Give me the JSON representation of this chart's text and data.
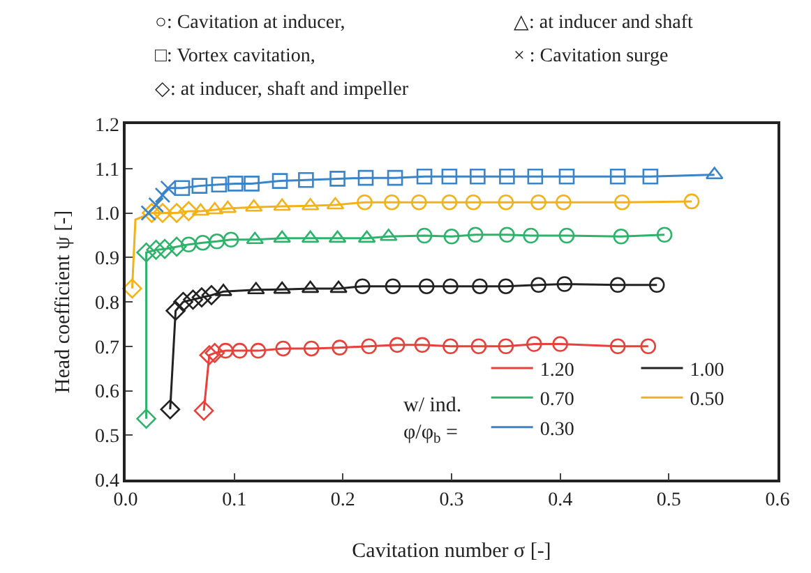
{
  "chart_data": {
    "type": "line",
    "xlabel": "Cavitation number σ [-]",
    "ylabel": "Head coefficient ψ [-]",
    "legend_title": "w/ ind.\nφ/φ$_{b}$ =",
    "legend": "bottom right",
    "grid": false,
    "xlim": [
      0,
      0.6
    ],
    "xticks": [
      {
        "value": 0,
        "label": "0.0"
      },
      0.1,
      0.2,
      0.3,
      0.4,
      0.5,
      0.6
    ],
    "ylim": [
      0.4,
      1.2
    ],
    "yticks": [
      0.4,
      0.5,
      0.6,
      0.7,
      0.8,
      0.9,
      {
        "value": 1,
        "label": "1.0"
      },
      1.1,
      1.2
    ],
    "annotations": [
      "○: Cavitation at inducer,",
      "△: at inducer and shaft",
      "□: Vortex cavitation,",
      "× : Cavitation surge",
      "◇: at inducer, shaft and impeller"
    ],
    "series": [
      {
        "name": "1.20",
        "type": "line",
        "marker": "none",
        "color": "#e8403a",
        "x": [
          0.072,
          0.077,
          0.082,
          0.092,
          0.105,
          0.122,
          0.145,
          0.171,
          0.197,
          0.224,
          0.25,
          0.273,
          0.299,
          0.325,
          0.35,
          0.376,
          0.4,
          0.453,
          0.481
        ],
        "values": [
          0.555,
          0.68,
          0.685,
          0.69,
          0.69,
          0.69,
          0.695,
          0.695,
          0.697,
          0.7,
          0.703,
          0.703,
          0.7,
          0.7,
          0.7,
          0.705,
          0.705,
          0.7,
          0.7
        ]
      },
      {
        "name": "1.00",
        "type": "line",
        "marker": "none",
        "color": "#222222",
        "x": [
          0.041,
          0.046,
          0.053,
          0.062,
          0.07,
          0.079,
          0.09,
          0.12,
          0.144,
          0.17,
          0.196,
          0.218,
          0.246,
          0.277,
          0.299,
          0.326,
          0.35,
          0.38,
          0.404,
          0.453,
          0.489
        ],
        "values": [
          0.558,
          0.78,
          0.8,
          0.805,
          0.81,
          0.815,
          0.823,
          0.827,
          0.828,
          0.83,
          0.83,
          0.835,
          0.835,
          0.835,
          0.835,
          0.835,
          0.835,
          0.838,
          0.84,
          0.838,
          0.838
        ]
      },
      {
        "name": "0.70",
        "type": "line",
        "marker": "none",
        "color": "#2db36b",
        "x": [
          0.019,
          0.019,
          0.028,
          0.036,
          0.047,
          0.058,
          0.071,
          0.084,
          0.097,
          0.119,
          0.144,
          0.17,
          0.195,
          0.222,
          0.242,
          0.275,
          0.3,
          0.322,
          0.351,
          0.373,
          0.406,
          0.456,
          0.496
        ],
        "values": [
          0.537,
          0.911,
          0.917,
          0.919,
          0.924,
          0.929,
          0.933,
          0.936,
          0.94,
          0.94,
          0.943,
          0.943,
          0.943,
          0.943,
          0.947,
          0.949,
          0.947,
          0.951,
          0.951,
          0.949,
          0.949,
          0.947,
          0.951
        ]
      },
      {
        "name": "0.50",
        "type": "line",
        "marker": "none",
        "color": "#f2b21b",
        "x": [
          0.006,
          0.009,
          0.024,
          0.034,
          0.047,
          0.058,
          0.069,
          0.082,
          0.094,
          0.118,
          0.144,
          0.17,
          0.193,
          0.22,
          0.245,
          0.27,
          0.298,
          0.32,
          0.35,
          0.38,
          0.403,
          0.457,
          0.521
        ],
        "values": [
          0.83,
          0.985,
          1.0,
          1.0,
          1.0,
          1.004,
          1.004,
          1.007,
          1.01,
          1.013,
          1.015,
          1.016,
          1.018,
          1.024,
          1.024,
          1.024,
          1.024,
          1.024,
          1.024,
          1.024,
          1.024,
          1.024,
          1.026
        ]
      },
      {
        "name": "0.30",
        "type": "line",
        "marker": "none",
        "color": "#3a84c8",
        "x": [
          0.021,
          0.028,
          0.034,
          0.039,
          0.052,
          0.068,
          0.086,
          0.101,
          0.116,
          0.142,
          0.166,
          0.195,
          0.221,
          0.248,
          0.275,
          0.298,
          0.324,
          0.351,
          0.377,
          0.406,
          0.453,
          0.483,
          0.542
        ],
        "values": [
          1.0,
          1.018,
          1.04,
          1.056,
          1.056,
          1.061,
          1.064,
          1.066,
          1.066,
          1.072,
          1.074,
          1.077,
          1.079,
          1.079,
          1.082,
          1.082,
          1.082,
          1.082,
          1.082,
          1.082,
          1.082,
          1.082,
          1.086
        ]
      },
      {
        "type": "scatter",
        "marker": "diamond",
        "color": "#e8403a",
        "x": [
          0.072,
          0.077,
          0.082
        ],
        "values": [
          0.555,
          0.68,
          0.685
        ]
      },
      {
        "type": "scatter",
        "marker": "circle",
        "color": "#e8403a",
        "x": [
          0.092,
          0.105,
          0.122,
          0.145,
          0.171,
          0.197,
          0.224,
          0.25,
          0.273,
          0.299,
          0.325,
          0.35,
          0.376,
          0.4,
          0.453,
          0.481
        ],
        "values": [
          0.69,
          0.69,
          0.69,
          0.695,
          0.695,
          0.697,
          0.7,
          0.703,
          0.703,
          0.7,
          0.7,
          0.7,
          0.705,
          0.705,
          0.7,
          0.7
        ]
      },
      {
        "type": "scatter",
        "marker": "diamond",
        "color": "#222222",
        "x": [
          0.041,
          0.046,
          0.053,
          0.062,
          0.07,
          0.079
        ],
        "values": [
          0.558,
          0.78,
          0.8,
          0.805,
          0.81,
          0.815
        ]
      },
      {
        "type": "scatter",
        "marker": "triangle",
        "color": "#222222",
        "x": [
          0.09,
          0.12,
          0.144,
          0.17,
          0.196
        ],
        "values": [
          0.823,
          0.827,
          0.828,
          0.83,
          0.83
        ]
      },
      {
        "type": "scatter",
        "marker": "circle",
        "color": "#222222",
        "x": [
          0.218,
          0.246,
          0.277,
          0.299,
          0.326,
          0.35,
          0.38,
          0.404,
          0.453,
          0.489
        ],
        "values": [
          0.835,
          0.835,
          0.835,
          0.835,
          0.835,
          0.835,
          0.838,
          0.84,
          0.838,
          0.838
        ]
      },
      {
        "type": "scatter",
        "marker": "diamond",
        "color": "#2db36b",
        "x": [
          0.019,
          0.019,
          0.028,
          0.036,
          0.047
        ],
        "values": [
          0.537,
          0.911,
          0.917,
          0.919,
          0.924
        ]
      },
      {
        "type": "scatter",
        "marker": "circle",
        "color": "#2db36b",
        "x": [
          0.058,
          0.071,
          0.084,
          0.097,
          0.275,
          0.3,
          0.322,
          0.351,
          0.373,
          0.406,
          0.456,
          0.496
        ],
        "values": [
          0.929,
          0.933,
          0.936,
          0.94,
          0.949,
          0.947,
          0.951,
          0.951,
          0.949,
          0.949,
          0.947,
          0.951
        ]
      },
      {
        "type": "scatter",
        "marker": "triangle",
        "color": "#2db36b",
        "x": [
          0.119,
          0.144,
          0.17,
          0.195,
          0.222,
          0.242
        ],
        "values": [
          0.94,
          0.943,
          0.943,
          0.943,
          0.943,
          0.947
        ]
      },
      {
        "type": "scatter",
        "marker": "diamond",
        "color": "#f2b21b",
        "x": [
          0.006,
          0.024,
          0.034,
          0.047,
          0.058
        ],
        "values": [
          0.83,
          1.0,
          1.0,
          1.0,
          1.004
        ]
      },
      {
        "type": "scatter",
        "marker": "triangle",
        "color": "#f2b21b",
        "x": [
          0.069,
          0.082,
          0.094,
          0.118,
          0.144,
          0.17,
          0.193
        ],
        "values": [
          1.004,
          1.007,
          1.01,
          1.013,
          1.015,
          1.016,
          1.018
        ]
      },
      {
        "type": "scatter",
        "marker": "circle",
        "color": "#f2b21b",
        "x": [
          0.22,
          0.245,
          0.27,
          0.298,
          0.32,
          0.35,
          0.38,
          0.403,
          0.457,
          0.521
        ],
        "values": [
          1.024,
          1.024,
          1.024,
          1.024,
          1.024,
          1.024,
          1.024,
          1.024,
          1.024,
          1.026
        ]
      },
      {
        "type": "scatter",
        "marker": "cross",
        "color": "#3a84c8",
        "x": [
          0.021,
          0.028,
          0.034,
          0.039
        ],
        "values": [
          1.0,
          1.018,
          1.04,
          1.056
        ]
      },
      {
        "type": "scatter",
        "marker": "square",
        "color": "#3a84c8",
        "x": [
          0.052,
          0.068,
          0.086,
          0.101,
          0.116,
          0.142,
          0.166,
          0.195,
          0.221,
          0.248,
          0.275,
          0.298,
          0.324,
          0.351,
          0.377,
          0.406,
          0.453,
          0.483
        ],
        "values": [
          1.056,
          1.061,
          1.064,
          1.066,
          1.066,
          1.072,
          1.074,
          1.077,
          1.079,
          1.079,
          1.082,
          1.082,
          1.082,
          1.082,
          1.082,
          1.082,
          1.082,
          1.082
        ]
      },
      {
        "type": "scatter",
        "marker": "triangle",
        "color": "#3a84c8",
        "x": [
          0.542
        ],
        "values": [
          1.086
        ]
      }
    ]
  }
}
